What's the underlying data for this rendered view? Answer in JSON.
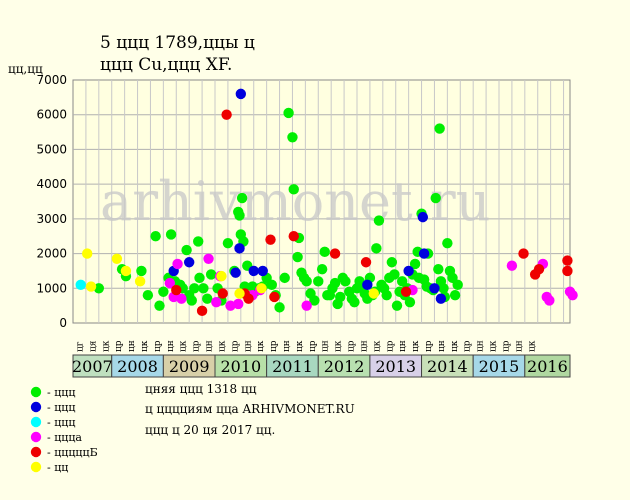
{
  "title": {
    "line1": "5 ццц 1789,ццы ц",
    "line2": "ццц Cu,ццц XF."
  },
  "watermark": "arhivmonet.ru",
  "info": {
    "line1": "цняя ццц 1318 цц",
    "line2": "ц цццциям цца ARHIVMONET.RU",
    "line3": "ццц ц 20 ця 2017 цц."
  },
  "legend": [
    {
      "label": "- ццц",
      "color": "#00ee00"
    },
    {
      "label": "- ццц",
      "color": "#0000dd"
    },
    {
      "label": "- ццц",
      "color": "#00ffff"
    },
    {
      "label": "- цццa",
      "color": "#ff00ff"
    },
    {
      "label": "- цццццБ",
      "color": "#ee0000"
    },
    {
      "label": "- цц",
      "color": "#ffff00"
    }
  ],
  "chart_data": {
    "type": "scatter",
    "ylabel": "цц,цц",
    "ylim": [
      0,
      7000
    ],
    "yticks": [
      0,
      1000,
      2000,
      3000,
      4000,
      5000,
      6000,
      7000
    ],
    "grid": true,
    "quarter_labels": [
      "цг",
      "ця",
      "цк",
      "цр",
      "цн",
      "цк",
      "цр",
      "цн",
      "цк",
      "цр",
      "цн",
      "цк",
      "цр",
      "цн",
      "цк",
      "цр",
      "цн",
      "цк",
      "цр",
      "цн",
      "цк",
      "цр",
      "цн",
      "цк",
      "цр",
      "цн",
      "цк",
      "цр",
      "цн",
      "цк",
      "цр",
      "цн",
      "цк",
      "цр",
      "цн",
      "цк"
    ],
    "years": [
      {
        "label": "2007",
        "start": 0,
        "span": 3,
        "color": "#bfe0bf"
      },
      {
        "label": "2008",
        "start": 3,
        "span": 4,
        "color": "#a6d8e8"
      },
      {
        "label": "2009",
        "start": 7,
        "span": 4,
        "color": "#d8d0a8"
      },
      {
        "label": "2010",
        "start": 11,
        "span": 4,
        "color": "#b8e0a8"
      },
      {
        "label": "2011",
        "start": 15,
        "span": 4,
        "color": "#a8d8c0"
      },
      {
        "label": "2012",
        "start": 19,
        "span": 4,
        "color": "#b8e0b0"
      },
      {
        "label": "2013",
        "start": 23,
        "span": 4,
        "color": "#d8d0e8"
      },
      {
        "label": "2014",
        "start": 27,
        "span": 4,
        "color": "#c8e0b8"
      },
      {
        "label": "2015",
        "start": 31,
        "span": 4,
        "color": "#a6d8e8"
      },
      {
        "label": "2016",
        "start": 35,
        "span": 1,
        "color": "#b0d8a0"
      }
    ],
    "series": [
      {
        "color": "#00ee00",
        "points": [
          [
            1.5,
            1000
          ],
          [
            3.3,
            1550
          ],
          [
            3.6,
            1350
          ],
          [
            4.8,
            1500
          ],
          [
            5.3,
            800
          ],
          [
            5.9,
            2500
          ],
          [
            6.2,
            500
          ],
          [
            6.5,
            900
          ],
          [
            6.9,
            1300
          ],
          [
            7.1,
            2550
          ],
          [
            7.4,
            1200
          ],
          [
            7.8,
            1100
          ],
          [
            8.0,
            1000
          ],
          [
            8.3,
            2100
          ],
          [
            8.5,
            800
          ],
          [
            8.7,
            650
          ],
          [
            8.9,
            1000
          ],
          [
            9.2,
            2350
          ],
          [
            9.3,
            1300
          ],
          [
            9.6,
            1000
          ],
          [
            9.9,
            700
          ],
          [
            10.2,
            1400
          ],
          [
            10.7,
            1000
          ],
          [
            11.0,
            650
          ],
          [
            11.5,
            2300
          ],
          [
            12.0,
            1500
          ],
          [
            12.3,
            3200
          ],
          [
            12.4,
            3100
          ],
          [
            12.5,
            2550
          ],
          [
            12.6,
            3600
          ],
          [
            12.7,
            2350
          ],
          [
            12.8,
            1050
          ],
          [
            13.0,
            1650
          ],
          [
            13.4,
            1050
          ],
          [
            13.6,
            900
          ],
          [
            13.9,
            1000
          ],
          [
            14.2,
            1050
          ],
          [
            14.5,
            1300
          ],
          [
            14.9,
            1100
          ],
          [
            15.2,
            800
          ],
          [
            15.5,
            450
          ],
          [
            15.9,
            1300
          ],
          [
            16.2,
            6050
          ],
          [
            16.5,
            5350
          ],
          [
            16.6,
            3850
          ],
          [
            16.9,
            1900
          ],
          [
            17.0,
            2450
          ],
          [
            17.2,
            1450
          ],
          [
            17.4,
            1300
          ],
          [
            17.6,
            1200
          ],
          [
            17.9,
            850
          ],
          [
            18.2,
            650
          ],
          [
            18.5,
            1200
          ],
          [
            18.8,
            1550
          ],
          [
            19.0,
            2050
          ],
          [
            19.2,
            800
          ],
          [
            19.4,
            800
          ],
          [
            19.6,
            1000
          ],
          [
            19.8,
            1150
          ],
          [
            20.0,
            550
          ],
          [
            20.2,
            750
          ],
          [
            20.4,
            1300
          ],
          [
            20.6,
            1200
          ],
          [
            20.9,
            900
          ],
          [
            21.1,
            700
          ],
          [
            21.3,
            600
          ],
          [
            21.5,
            1000
          ],
          [
            21.7,
            1200
          ],
          [
            21.9,
            1050
          ],
          [
            22.1,
            850
          ],
          [
            22.3,
            700
          ],
          [
            22.5,
            1300
          ],
          [
            22.7,
            800
          ],
          [
            22.9,
            900
          ],
          [
            23.0,
            2150
          ],
          [
            23.2,
            2950
          ],
          [
            23.4,
            1100
          ],
          [
            23.6,
            1000
          ],
          [
            23.8,
            800
          ],
          [
            24.0,
            1300
          ],
          [
            24.2,
            1750
          ],
          [
            24.4,
            1400
          ],
          [
            24.6,
            500
          ],
          [
            24.8,
            900
          ],
          [
            25.0,
            1200
          ],
          [
            25.2,
            800
          ],
          [
            25.4,
            1000
          ],
          [
            25.6,
            600
          ],
          [
            25.8,
            1400
          ],
          [
            26.0,
            1700
          ],
          [
            26.2,
            2050
          ],
          [
            26.3,
            1300
          ],
          [
            26.5,
            3150
          ],
          [
            26.7,
            1250
          ],
          [
            26.9,
            1050
          ],
          [
            27.0,
            2000
          ],
          [
            27.2,
            1000
          ],
          [
            27.4,
            950
          ],
          [
            27.6,
            3600
          ],
          [
            27.8,
            1550
          ],
          [
            27.9,
            5600
          ],
          [
            28.0,
            1200
          ],
          [
            28.2,
            1000
          ],
          [
            28.3,
            750
          ],
          [
            28.5,
            2300
          ],
          [
            28.7,
            1500
          ],
          [
            28.9,
            1300
          ],
          [
            29.1,
            800
          ],
          [
            29.3,
            1100
          ]
        ]
      },
      {
        "color": "#0000dd",
        "points": [
          [
            7.3,
            1500
          ],
          [
            8.5,
            1750
          ],
          [
            12.4,
            2150
          ],
          [
            12.5,
            6600
          ],
          [
            12.1,
            1450
          ],
          [
            13.5,
            1500
          ],
          [
            14.2,
            1500
          ],
          [
            22.3,
            1100
          ],
          [
            25.5,
            1500
          ],
          [
            26.6,
            3050
          ],
          [
            26.7,
            2000
          ],
          [
            27.5,
            1000
          ],
          [
            28.0,
            700
          ]
        ]
      },
      {
        "color": "#00ffff",
        "points": [
          [
            0.1,
            1100
          ]
        ]
      },
      {
        "color": "#ff00ff",
        "points": [
          [
            7.0,
            1150
          ],
          [
            7.3,
            750
          ],
          [
            7.6,
            1700
          ],
          [
            7.9,
            700
          ],
          [
            10.0,
            1850
          ],
          [
            10.6,
            600
          ],
          [
            10.9,
            1350
          ],
          [
            11.7,
            500
          ],
          [
            12.3,
            550
          ],
          [
            13.4,
            800
          ],
          [
            14.0,
            950
          ],
          [
            17.6,
            500
          ],
          [
            25.8,
            950
          ],
          [
            33.5,
            1650
          ],
          [
            35.9,
            1700
          ],
          [
            36.2,
            750
          ],
          [
            36.4,
            650
          ],
          [
            38.0,
            900
          ],
          [
            38.2,
            800
          ]
        ]
      },
      {
        "color": "#ee0000",
        "points": [
          [
            7.5,
            950
          ],
          [
            9.5,
            350
          ],
          [
            11.1,
            850
          ],
          [
            11.4,
            6000
          ],
          [
            12.8,
            850
          ],
          [
            13.1,
            700
          ],
          [
            14.8,
            2400
          ],
          [
            15.1,
            750
          ],
          [
            16.6,
            2500
          ],
          [
            19.8,
            2000
          ],
          [
            22.2,
            1750
          ],
          [
            25.3,
            900
          ],
          [
            34.4,
            2000
          ],
          [
            35.3,
            1400
          ],
          [
            35.6,
            1550
          ],
          [
            37.8,
            1800
          ],
          [
            37.8,
            1500
          ]
        ]
      },
      {
        "color": "#ffff00",
        "points": [
          [
            0.6,
            2000
          ],
          [
            0.9,
            1050
          ],
          [
            2.9,
            1850
          ],
          [
            3.6,
            1500
          ],
          [
            4.7,
            1200
          ],
          [
            11.0,
            1350
          ],
          [
            12.4,
            850
          ],
          [
            14.1,
            1000
          ],
          [
            22.8,
            850
          ]
        ]
      }
    ]
  }
}
